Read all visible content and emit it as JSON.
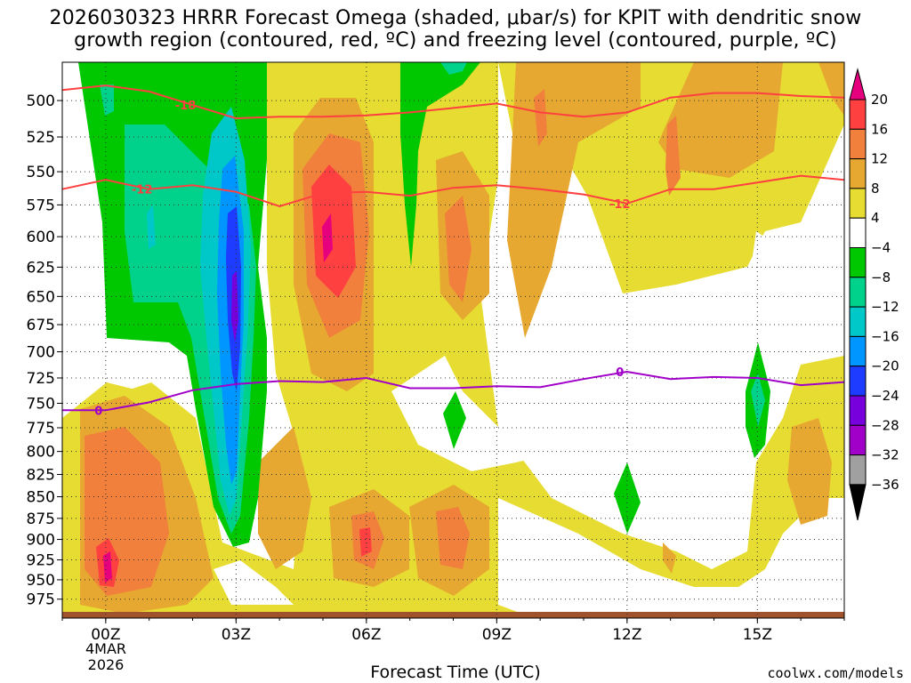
{
  "title_line1": "2026030323 HRRR Forecast Omega (shaded, μbar/s) for KPIT with dendritic snow",
  "title_line2": "growth region (contoured, red, ºC) and freezing level (contoured, purple, ºC)",
  "credit": "coolwx.com/models",
  "chart_data": {
    "type": "heatmap",
    "title": "2026030323 HRRR Forecast Omega (shaded, μbar/s) for KPIT with dendritic snow growth region (contoured, red, ºC) and freezing level (contoured, purple, ºC)",
    "xlabel": "Forecast Time (UTC)",
    "ylabel": "",
    "x_ticks": [
      "00Z",
      "03Z",
      "06Z",
      "09Z",
      "12Z",
      "15Z"
    ],
    "x_tick_hours": [
      0,
      3,
      6,
      9,
      12,
      15
    ],
    "x_sub_labels": [
      "4MAR",
      "2026"
    ],
    "xlim": [
      -1,
      17
    ],
    "y_ticks": [
      500,
      525,
      550,
      575,
      600,
      625,
      650,
      675,
      700,
      725,
      750,
      775,
      800,
      825,
      850,
      875,
      900,
      925,
      950,
      975
    ],
    "ylim": [
      1000,
      475
    ],
    "y_scale": "log",
    "colorbar": {
      "levels": [
        "20",
        "16",
        "12",
        "8",
        "4",
        "−4",
        "−8",
        "−12",
        "−16",
        "−20",
        "−24",
        "−28",
        "−32",
        "−36"
      ],
      "colors": [
        "#e6007e",
        "#ff4040",
        "#f0803c",
        "#e6a830",
        "#e6dc32",
        "#ffffff",
        "#00c800",
        "#00d28c",
        "#00c8c8",
        "#0096ff",
        "#1e3cff",
        "#7800dc",
        "#a000c8",
        "#a0a0a0",
        "#000000"
      ]
    },
    "contours": [
      {
        "name": "-18",
        "color": "#ff4040",
        "points": [
          [
            -1,
            493
          ],
          [
            0,
            490
          ],
          [
            1,
            494
          ],
          [
            2,
            503
          ],
          [
            3,
            512
          ],
          [
            4,
            511
          ],
          [
            5,
            511
          ],
          [
            6,
            510
          ],
          [
            7,
            508
          ],
          [
            8,
            505
          ],
          [
            9,
            502
          ],
          [
            10,
            508
          ],
          [
            11,
            511
          ],
          [
            12,
            508
          ],
          [
            13,
            498
          ],
          [
            14,
            495
          ],
          [
            15,
            495
          ],
          [
            16,
            497
          ],
          [
            17,
            498
          ]
        ]
      },
      {
        "name": "-12",
        "color": "#ff4040",
        "points": [
          [
            -1,
            563
          ],
          [
            0,
            556
          ],
          [
            1,
            563
          ],
          [
            2,
            560
          ],
          [
            3,
            565
          ],
          [
            4,
            576
          ],
          [
            5,
            566
          ],
          [
            6,
            565
          ],
          [
            7,
            568
          ],
          [
            8,
            562
          ],
          [
            9,
            560
          ],
          [
            10,
            563
          ],
          [
            11,
            567
          ],
          [
            12,
            574
          ],
          [
            13,
            563
          ],
          [
            14,
            563
          ],
          [
            15,
            558
          ],
          [
            16,
            553
          ],
          [
            17,
            556
          ]
        ]
      },
      {
        "name": "0",
        "color": "#a000c8",
        "points": [
          [
            -1,
            757
          ],
          [
            0,
            757
          ],
          [
            1,
            749
          ],
          [
            2,
            737
          ],
          [
            3,
            731
          ],
          [
            4,
            728
          ],
          [
            5,
            729
          ],
          [
            6,
            725
          ],
          [
            7,
            735
          ],
          [
            8,
            735
          ],
          [
            9,
            733
          ],
          [
            10,
            734
          ],
          [
            11,
            726
          ],
          [
            12,
            719
          ],
          [
            13,
            726
          ],
          [
            14,
            724
          ],
          [
            15,
            725
          ],
          [
            16,
            732
          ],
          [
            17,
            729
          ]
        ]
      }
    ]
  }
}
